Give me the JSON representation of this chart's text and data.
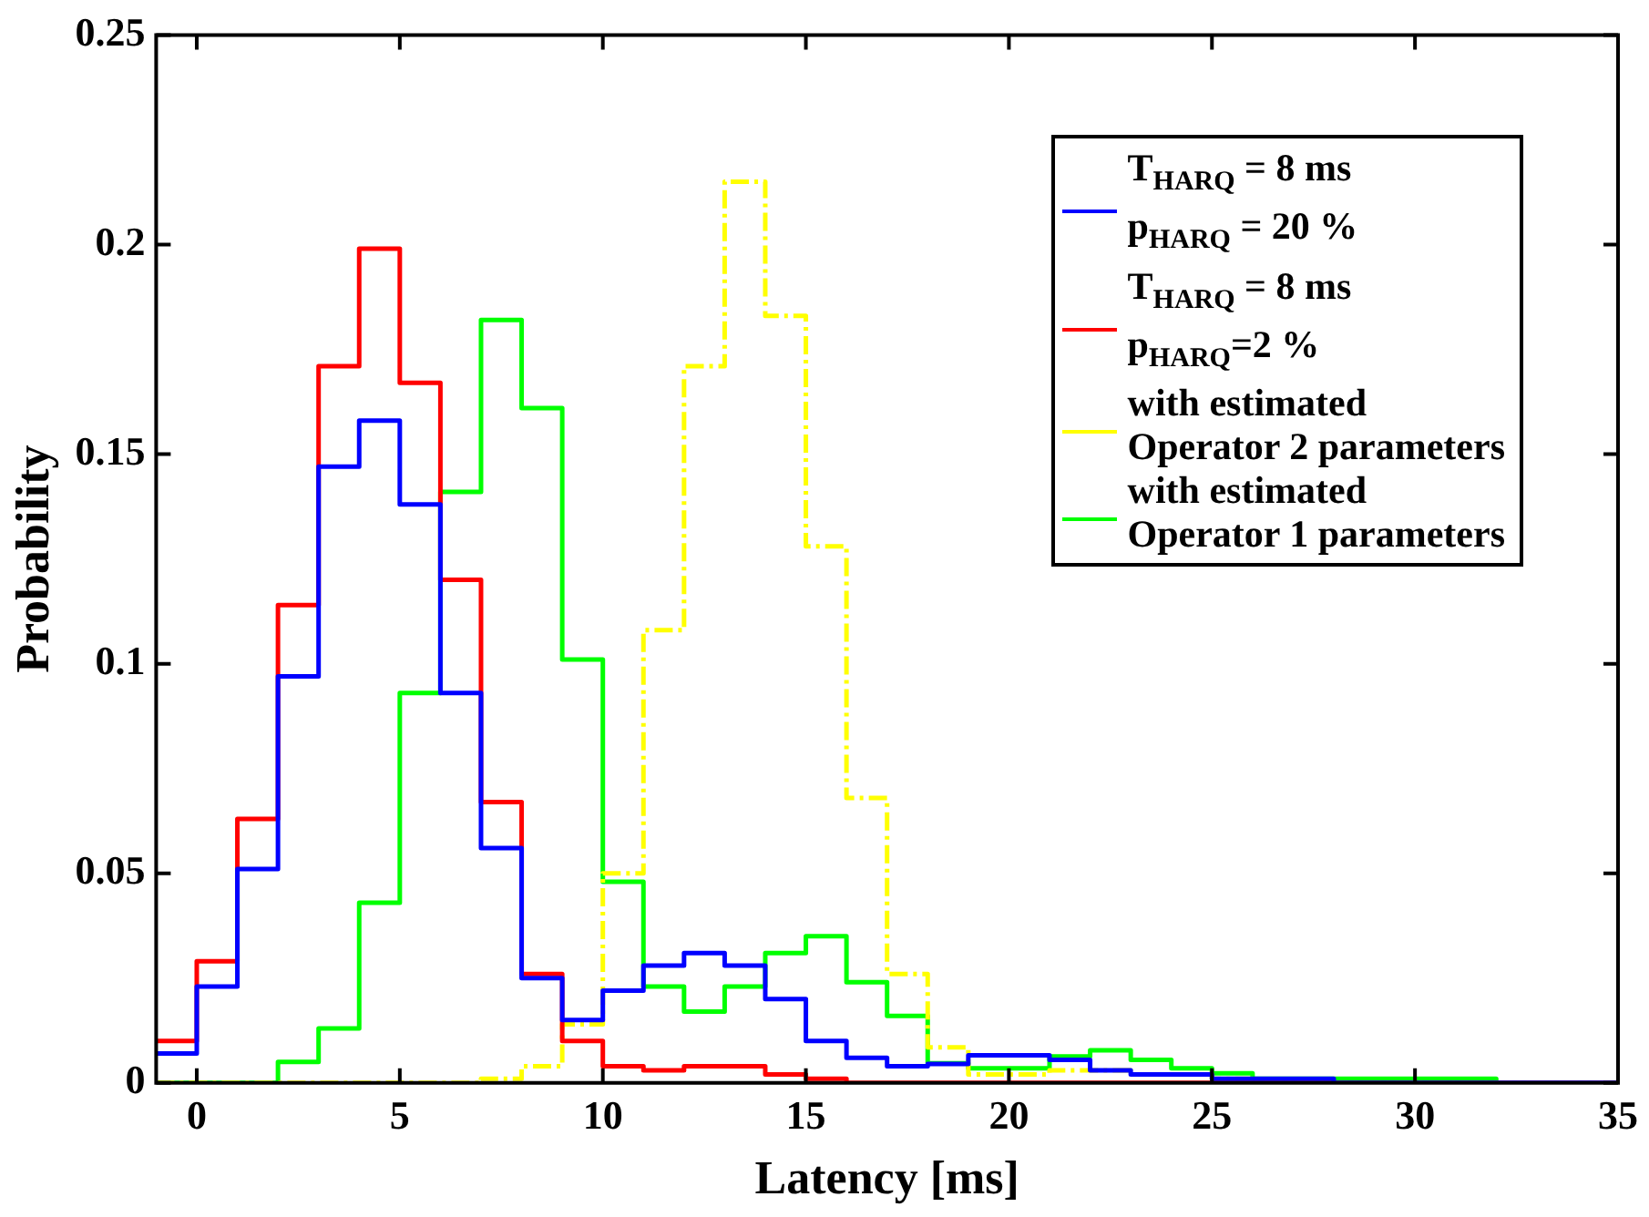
{
  "chart_data": {
    "type": "histogram",
    "xlabel": "Latency [ms]",
    "ylabel": "Probability",
    "bins": [
      -1,
      0,
      1,
      2,
      3,
      4,
      5,
      6,
      7,
      8,
      9,
      10,
      11,
      12,
      13,
      14,
      15,
      16,
      17,
      18,
      19,
      20,
      21,
      22,
      23,
      24,
      25,
      26,
      27,
      28,
      29,
      30,
      31,
      32,
      33,
      34,
      35
    ],
    "series": [
      {
        "name": "T$_{HARQ}$ = 8 ms\np$_{HARQ}$ = 20 %",
        "color": "#0000ff",
        "values": [
          0.007,
          0.023,
          0.051,
          0.097,
          0.147,
          0.158,
          0.138,
          0.093,
          0.056,
          0.025,
          0.015,
          0.022,
          0.028,
          0.031,
          0.028,
          0.02,
          0.01,
          0.006,
          0.004,
          0.0045,
          0.0066,
          0.0066,
          0.0055,
          0.003,
          0.002,
          0.002,
          0.001,
          0.001,
          0.001,
          0,
          0,
          0,
          0,
          0,
          0,
          0
        ]
      },
      {
        "name": "T$_{HARQ}$ = 8 ms\np$_{HARQ}$=2 %",
        "color": "#ff0000",
        "values": [
          0.01,
          0.029,
          0.063,
          0.114,
          0.171,
          0.199,
          0.167,
          0.12,
          0.067,
          0.026,
          0.01,
          0.004,
          0.003,
          0.004,
          0.004,
          0.002,
          0.001,
          0,
          0,
          0,
          0,
          0,
          0,
          0,
          0,
          0,
          0,
          0,
          0,
          0,
          0,
          0,
          0,
          0,
          0,
          0
        ]
      },
      {
        "name": "with estimated\nOperator 2 parameters",
        "color": "#ffff00",
        "line_style": "dashed",
        "values": [
          0,
          0,
          0,
          0,
          0,
          0,
          0,
          0,
          0.001,
          0.004,
          0.014,
          0.05,
          0.108,
          0.171,
          0.215,
          0.183,
          0.128,
          0.068,
          0.026,
          0.0085,
          0.002,
          0.002,
          0.003,
          0.003,
          0.002,
          0.002,
          0.001,
          0,
          0,
          0,
          0,
          0,
          0,
          0,
          0,
          0
        ]
      },
      {
        "name": "with estimated\nOperator 1 parameters",
        "color": "#00ff00",
        "values": [
          0,
          0,
          0,
          0.005,
          0.013,
          0.043,
          0.093,
          0.141,
          0.182,
          0.161,
          0.101,
          0.048,
          0.023,
          0.017,
          0.023,
          0.031,
          0.035,
          0.024,
          0.016,
          0.0047,
          0.0035,
          0.0035,
          0.0063,
          0.0078,
          0.0055,
          0.0035,
          0.0023,
          0.001,
          0.001,
          0.001,
          0.001,
          0.001,
          0.001,
          0,
          0,
          0
        ]
      }
    ],
    "xlim": [
      -1,
      35
    ],
    "xticks": [
      0,
      5,
      10,
      15,
      20,
      25,
      30,
      35
    ],
    "ylim": [
      0,
      0.25
    ],
    "yticks": [
      0,
      0.05,
      0.1,
      0.15,
      0.2,
      0.25
    ],
    "grid": false,
    "legend": "top right"
  }
}
